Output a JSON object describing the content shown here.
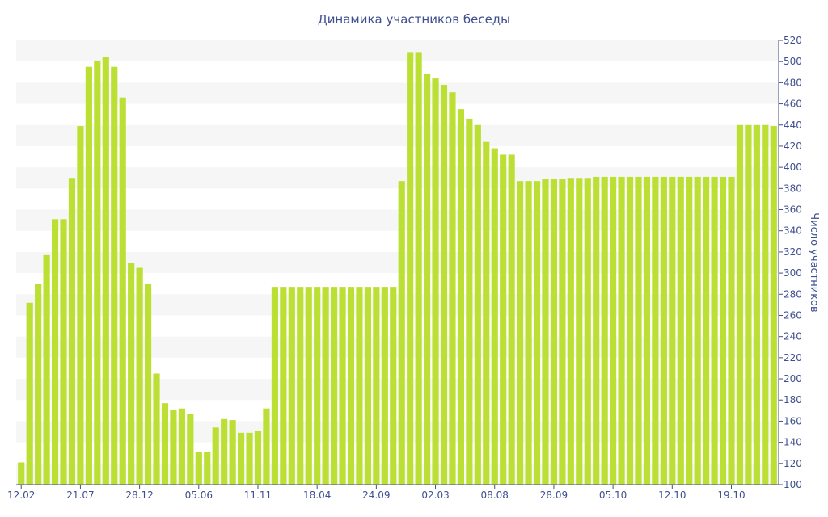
{
  "colors": {
    "bar": "#bbdf33",
    "band": "#f6f6f6",
    "text": "#3f4f8f",
    "axis": "#3f4f8f"
  },
  "chart_data": {
    "type": "bar",
    "title": "Динамика участников беседы",
    "ylabel": "Число участников",
    "xlabel": "",
    "ylim": [
      100,
      520
    ],
    "y_ticks": [
      100,
      120,
      140,
      160,
      180,
      200,
      220,
      240,
      260,
      280,
      300,
      320,
      340,
      360,
      380,
      400,
      420,
      440,
      460,
      480,
      500,
      520
    ],
    "grid": "alternating horizontal bands",
    "x_tick_labels": [
      {
        "index": 0,
        "label": "12.02"
      },
      {
        "index": 7,
        "label": "21.07"
      },
      {
        "index": 14,
        "label": "28.12"
      },
      {
        "index": 21,
        "label": "05.06"
      },
      {
        "index": 28,
        "label": "11.11"
      },
      {
        "index": 35,
        "label": "18.04"
      },
      {
        "index": 42,
        "label": "24.09"
      },
      {
        "index": 49,
        "label": "02.03"
      },
      {
        "index": 56,
        "label": "08.08"
      },
      {
        "index": 63,
        "label": "28.09"
      },
      {
        "index": 70,
        "label": "05.10"
      },
      {
        "index": 77,
        "label": "12.10"
      },
      {
        "index": 84,
        "label": "19.10"
      }
    ],
    "values": [
      121,
      272,
      290,
      317,
      351,
      351,
      390,
      439,
      495,
      501,
      504,
      495,
      466,
      310,
      305,
      290,
      205,
      177,
      171,
      172,
      167,
      131,
      131,
      154,
      162,
      161,
      149,
      149,
      151,
      172,
      287,
      287,
      287,
      287,
      287,
      287,
      287,
      287,
      287,
      287,
      287,
      287,
      287,
      287,
      287,
      387,
      509,
      509,
      488,
      484,
      478,
      471,
      455,
      446,
      440,
      424,
      418,
      412,
      412,
      387,
      387,
      387,
      389,
      389,
      389,
      390,
      390,
      390,
      391,
      391,
      391,
      391,
      391,
      391,
      391,
      391,
      391,
      391,
      391,
      391,
      391,
      391,
      391,
      391,
      391,
      440,
      440,
      440,
      440,
      439
    ]
  }
}
